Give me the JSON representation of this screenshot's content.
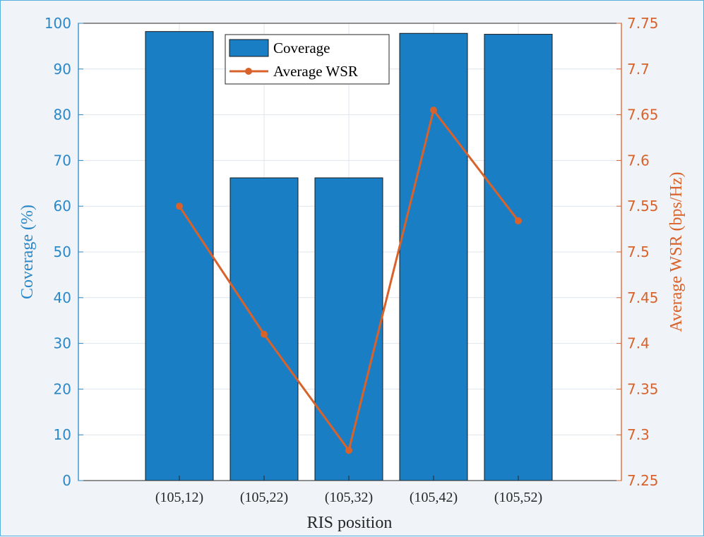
{
  "chart_data": {
    "type": "bar",
    "categories": [
      "(105,12)",
      "(105,22)",
      "(105,32)",
      "(105,42)",
      "(105,52)"
    ],
    "series": [
      {
        "name": "Coverage",
        "type": "bar",
        "axis": "left",
        "color": "#1a7ec4",
        "values": [
          98.2,
          66.2,
          66.2,
          97.8,
          97.6
        ]
      },
      {
        "name": "Average WSR",
        "type": "line",
        "axis": "right",
        "color": "#d9622b",
        "values": [
          7.55,
          7.41,
          7.283,
          7.655,
          7.534
        ]
      }
    ],
    "xlabel": "RIS position",
    "ylabel": "Coverage (%)",
    "y2label": "Average WSR (bps/Hz)",
    "ylim": [
      0,
      100
    ],
    "y2lim": [
      7.25,
      7.75
    ],
    "yticks": [
      "0",
      "10",
      "20",
      "30",
      "40",
      "50",
      "60",
      "70",
      "80",
      "90",
      "100"
    ],
    "y2ticks": [
      "7.25",
      "7.3",
      "7.35",
      "7.4",
      "7.45",
      "7.5",
      "7.55",
      "7.6",
      "7.65",
      "7.7",
      "7.75"
    ],
    "grid": true,
    "legend_position": "top-center",
    "left_axis_color": "#2a88c8",
    "right_axis_color": "#d9622b"
  }
}
